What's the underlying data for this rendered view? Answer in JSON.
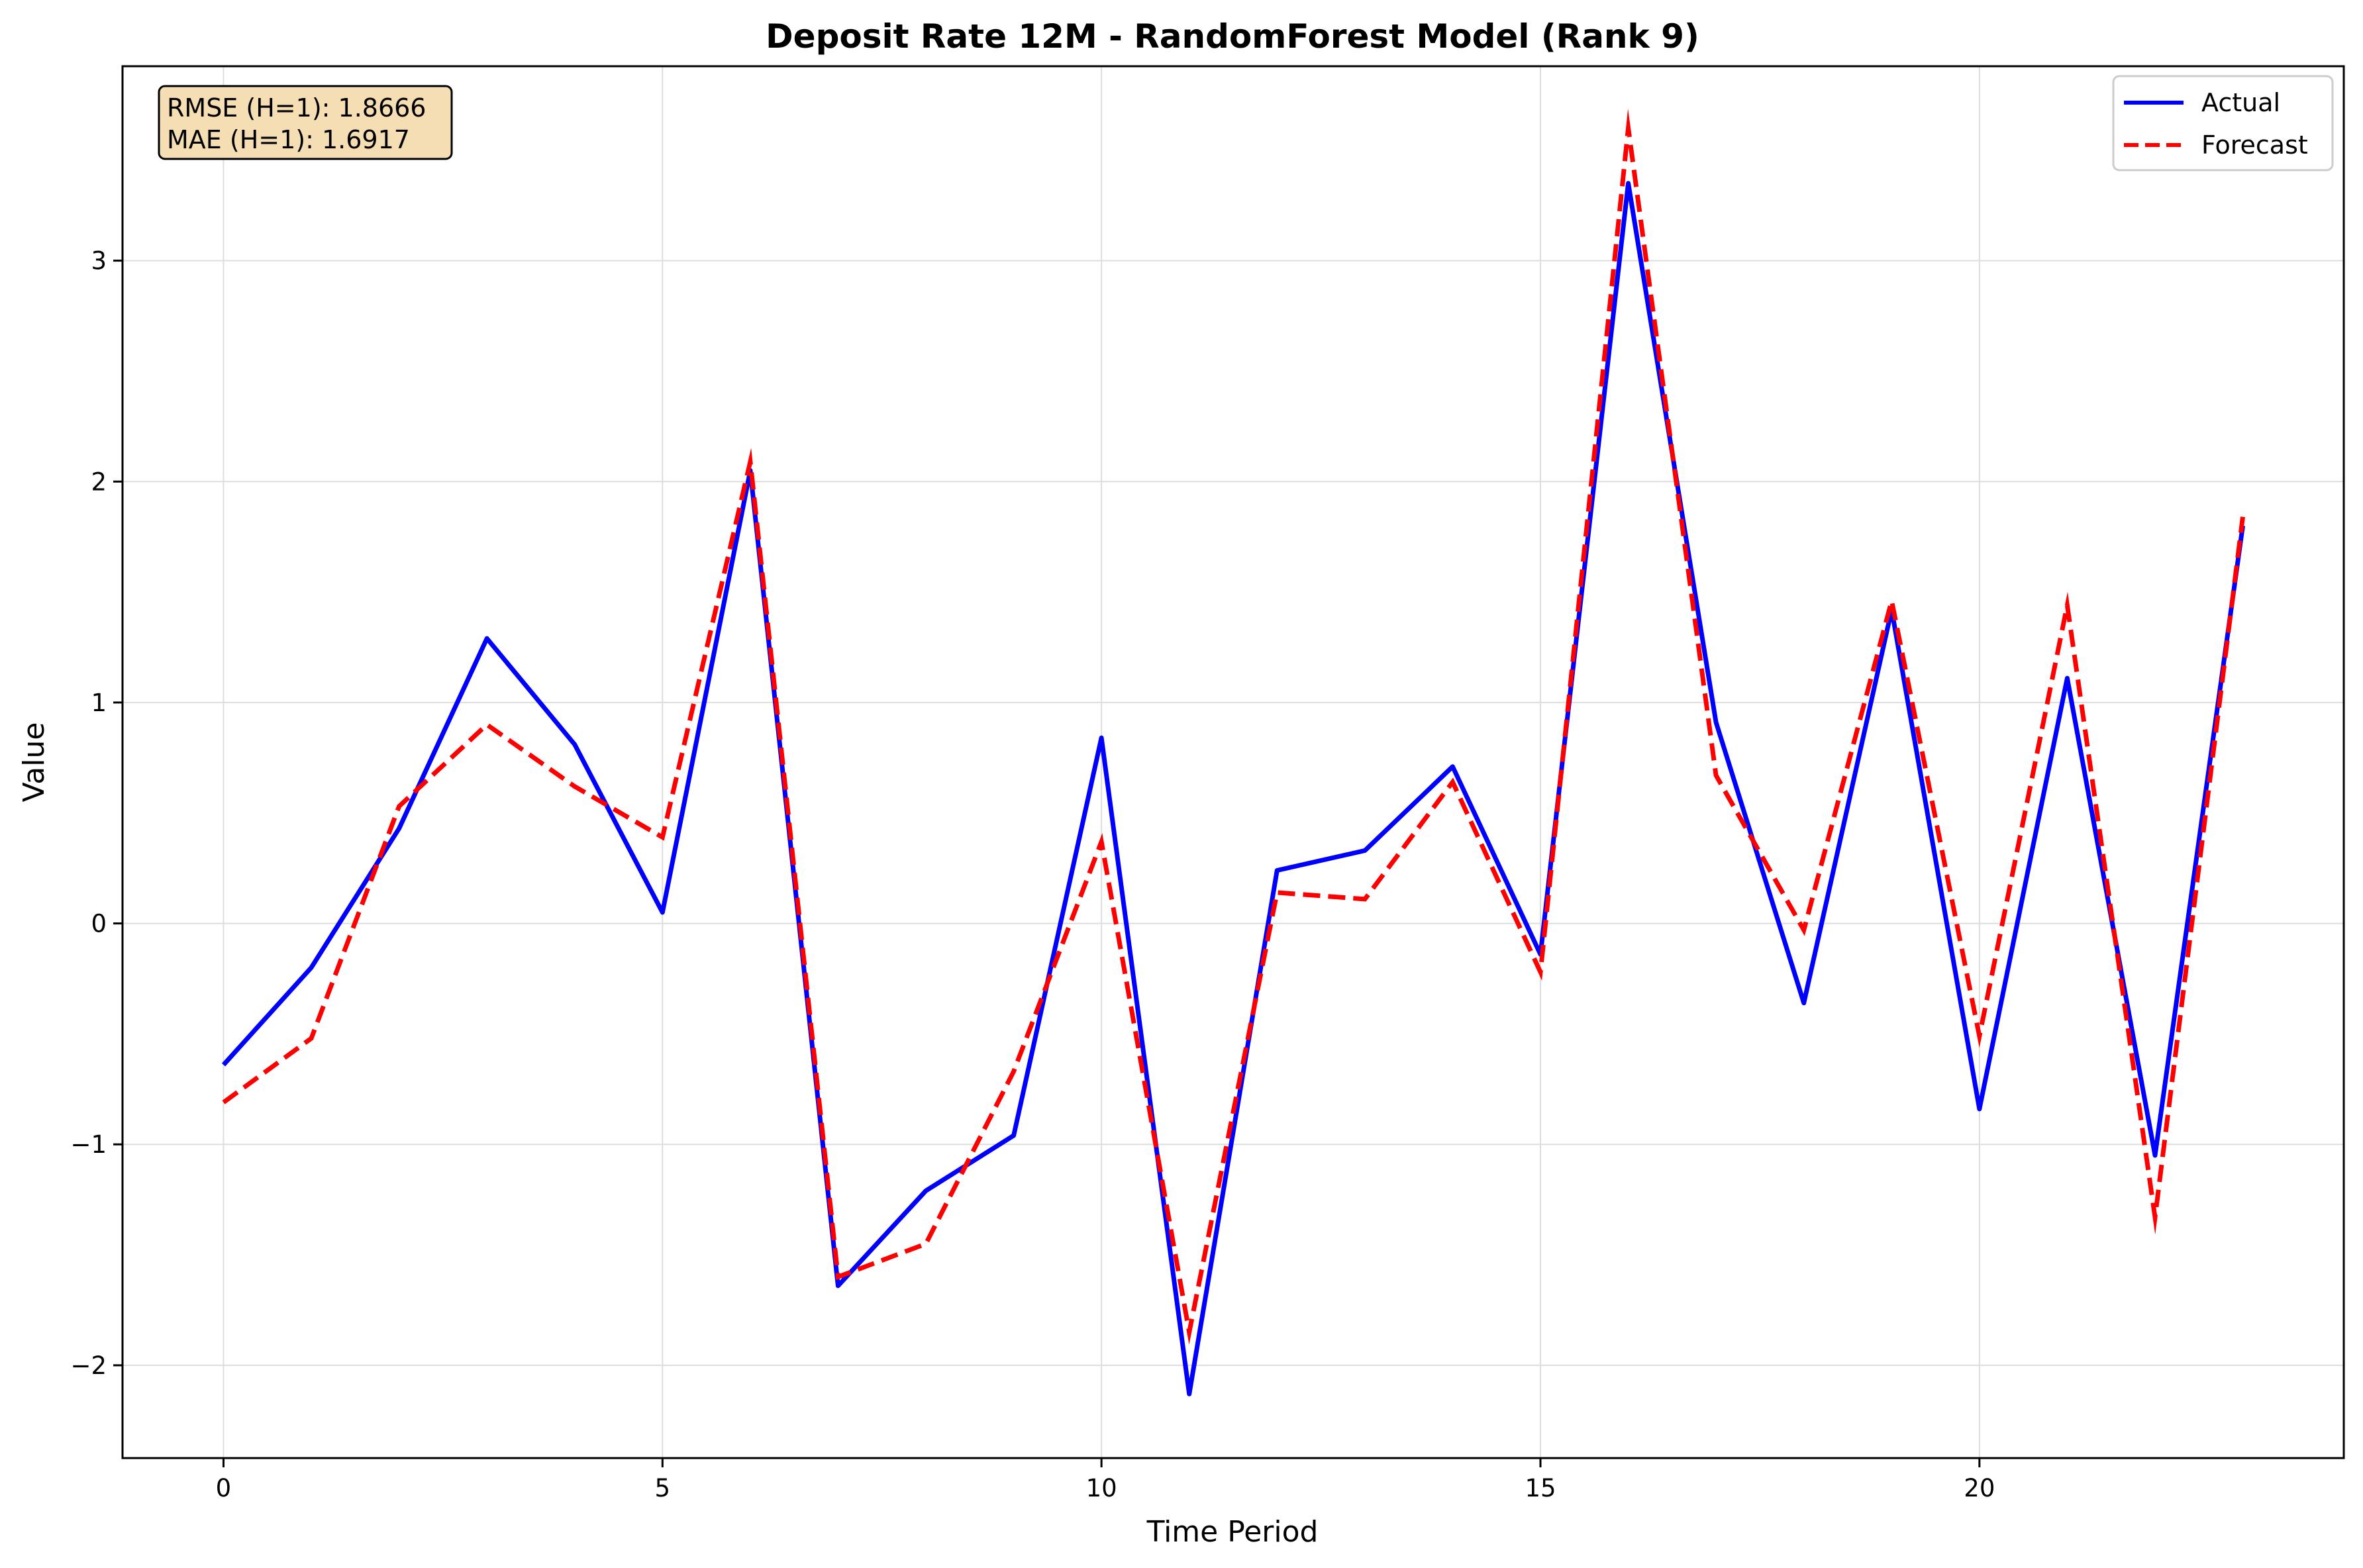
{
  "chart_data": {
    "type": "line",
    "title": "Deposit Rate 12M - RandomForest Model (Rank 9)",
    "xlabel": "Time Period",
    "ylabel": "Value",
    "xlim": [
      -1.15,
      24.15
    ],
    "ylim": [
      -2.42,
      3.88
    ],
    "xticks": [
      0,
      5,
      10,
      15,
      20
    ],
    "yticks": [
      -2,
      -1,
      0,
      1,
      2,
      3
    ],
    "ytick_labels": [
      "−2",
      "−1",
      "0",
      "1",
      "2",
      "3"
    ],
    "grid": true,
    "legend_position": "top-right",
    "x": [
      0,
      1,
      2,
      3,
      4,
      5,
      6,
      7,
      8,
      9,
      10,
      11,
      12,
      13,
      14,
      15,
      16,
      17,
      18,
      19,
      20,
      21,
      22,
      23
    ],
    "series": [
      {
        "name": "Actual",
        "color": "#0000ff",
        "style": "solid",
        "values": [
          -0.64,
          -0.2,
          0.43,
          1.29,
          0.81,
          0.05,
          2.05,
          -1.64,
          -1.21,
          -0.96,
          0.84,
          -2.13,
          0.24,
          0.33,
          0.71,
          -0.14,
          3.35,
          0.91,
          -0.36,
          1.42,
          -0.84,
          1.11,
          -1.05,
          1.8
        ]
      },
      {
        "name": "Forecast",
        "color": "#ff0000",
        "style": "dashed",
        "values": [
          -0.81,
          -0.52,
          0.53,
          0.9,
          0.62,
          0.39,
          2.09,
          -1.6,
          -1.45,
          -0.67,
          0.37,
          -1.85,
          0.14,
          0.11,
          0.64,
          -0.22,
          3.6,
          0.67,
          -0.03,
          1.46,
          -0.51,
          1.44,
          -1.33,
          1.84
        ]
      }
    ],
    "annotations": {
      "rmse": "RMSE (H=1): 1.8666",
      "mae": "MAE (H=1): 1.6917"
    }
  },
  "colors": {
    "annotation_bg": "#f5deb3",
    "grid": "#dddddd",
    "axis": "#000000"
  }
}
